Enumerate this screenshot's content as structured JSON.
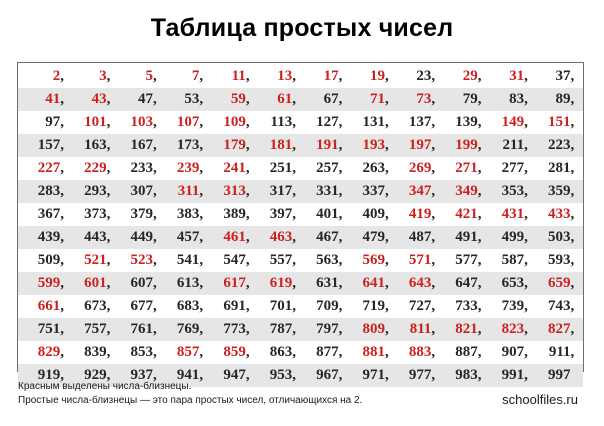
{
  "title": "Таблица простых чисел",
  "colors": {
    "twin": "#cc1f1f",
    "normal": "#262626",
    "row_alt_bg": "#e6e6e6",
    "border": "#6e6e6e"
  },
  "rows": [
    [
      {
        "n": "2",
        "twin": true
      },
      {
        "n": "3",
        "twin": true
      },
      {
        "n": "5",
        "twin": true
      },
      {
        "n": "7",
        "twin": true
      },
      {
        "n": "11",
        "twin": true
      },
      {
        "n": "13",
        "twin": true
      },
      {
        "n": "17",
        "twin": true
      },
      {
        "n": "19",
        "twin": true
      },
      {
        "n": "23",
        "twin": false
      },
      {
        "n": "29",
        "twin": true
      },
      {
        "n": "31",
        "twin": true
      },
      {
        "n": "37",
        "twin": false
      }
    ],
    [
      {
        "n": "41",
        "twin": true
      },
      {
        "n": "43",
        "twin": true
      },
      {
        "n": "47",
        "twin": false
      },
      {
        "n": "53",
        "twin": false
      },
      {
        "n": "59",
        "twin": true
      },
      {
        "n": "61",
        "twin": true
      },
      {
        "n": "67",
        "twin": false
      },
      {
        "n": "71",
        "twin": true
      },
      {
        "n": "73",
        "twin": true
      },
      {
        "n": "79",
        "twin": false
      },
      {
        "n": "83",
        "twin": false
      },
      {
        "n": "89",
        "twin": false
      }
    ],
    [
      {
        "n": "97",
        "twin": false
      },
      {
        "n": "101",
        "twin": true
      },
      {
        "n": "103",
        "twin": true
      },
      {
        "n": "107",
        "twin": true
      },
      {
        "n": "109",
        "twin": true
      },
      {
        "n": "113",
        "twin": false
      },
      {
        "n": "127",
        "twin": false
      },
      {
        "n": "131",
        "twin": false
      },
      {
        "n": "137",
        "twin": false
      },
      {
        "n": "139",
        "twin": false
      },
      {
        "n": "149",
        "twin": true
      },
      {
        "n": "151",
        "twin": true
      }
    ],
    [
      {
        "n": "157",
        "twin": false
      },
      {
        "n": "163",
        "twin": false
      },
      {
        "n": "167",
        "twin": false
      },
      {
        "n": "173",
        "twin": false
      },
      {
        "n": "179",
        "twin": true
      },
      {
        "n": "181",
        "twin": true
      },
      {
        "n": "191",
        "twin": true
      },
      {
        "n": "193",
        "twin": true
      },
      {
        "n": "197",
        "twin": true
      },
      {
        "n": "199",
        "twin": true
      },
      {
        "n": "211",
        "twin": false
      },
      {
        "n": "223",
        "twin": false
      }
    ],
    [
      {
        "n": "227",
        "twin": true
      },
      {
        "n": "229",
        "twin": true
      },
      {
        "n": "233",
        "twin": false
      },
      {
        "n": "239",
        "twin": true
      },
      {
        "n": "241",
        "twin": true
      },
      {
        "n": "251",
        "twin": false
      },
      {
        "n": "257",
        "twin": false
      },
      {
        "n": "263",
        "twin": false
      },
      {
        "n": "269",
        "twin": true
      },
      {
        "n": "271",
        "twin": true
      },
      {
        "n": "277",
        "twin": false
      },
      {
        "n": "281",
        "twin": false
      }
    ],
    [
      {
        "n": "283",
        "twin": false
      },
      {
        "n": "293",
        "twin": false
      },
      {
        "n": "307",
        "twin": false
      },
      {
        "n": "311",
        "twin": true
      },
      {
        "n": "313",
        "twin": true
      },
      {
        "n": "317",
        "twin": false
      },
      {
        "n": "331",
        "twin": false
      },
      {
        "n": "337",
        "twin": false
      },
      {
        "n": "347",
        "twin": true
      },
      {
        "n": "349",
        "twin": true
      },
      {
        "n": "353",
        "twin": false
      },
      {
        "n": "359",
        "twin": false
      }
    ],
    [
      {
        "n": "367",
        "twin": false
      },
      {
        "n": "373",
        "twin": false
      },
      {
        "n": "379",
        "twin": false
      },
      {
        "n": "383",
        "twin": false
      },
      {
        "n": "389",
        "twin": false
      },
      {
        "n": "397",
        "twin": false
      },
      {
        "n": "401",
        "twin": false
      },
      {
        "n": "409",
        "twin": false
      },
      {
        "n": "419",
        "twin": true
      },
      {
        "n": "421",
        "twin": true
      },
      {
        "n": "431",
        "twin": true
      },
      {
        "n": "433",
        "twin": true
      }
    ],
    [
      {
        "n": "439",
        "twin": false
      },
      {
        "n": "443",
        "twin": false
      },
      {
        "n": "449",
        "twin": false
      },
      {
        "n": "457",
        "twin": false
      },
      {
        "n": "461",
        "twin": true
      },
      {
        "n": "463",
        "twin": true
      },
      {
        "n": "467",
        "twin": false
      },
      {
        "n": "479",
        "twin": false
      },
      {
        "n": "487",
        "twin": false
      },
      {
        "n": "491",
        "twin": false
      },
      {
        "n": "499",
        "twin": false
      },
      {
        "n": "503",
        "twin": false
      }
    ],
    [
      {
        "n": "509",
        "twin": false
      },
      {
        "n": "521",
        "twin": true
      },
      {
        "n": "523",
        "twin": true
      },
      {
        "n": "541",
        "twin": false
      },
      {
        "n": "547",
        "twin": false
      },
      {
        "n": "557",
        "twin": false
      },
      {
        "n": "563",
        "twin": false
      },
      {
        "n": "569",
        "twin": true
      },
      {
        "n": "571",
        "twin": true
      },
      {
        "n": "577",
        "twin": false
      },
      {
        "n": "587",
        "twin": false
      },
      {
        "n": "593",
        "twin": false
      }
    ],
    [
      {
        "n": "599",
        "twin": true
      },
      {
        "n": "601",
        "twin": true
      },
      {
        "n": "607",
        "twin": false
      },
      {
        "n": "613",
        "twin": false
      },
      {
        "n": "617",
        "twin": true
      },
      {
        "n": "619",
        "twin": true
      },
      {
        "n": "631",
        "twin": false
      },
      {
        "n": "641",
        "twin": true
      },
      {
        "n": "643",
        "twin": true
      },
      {
        "n": "647",
        "twin": false
      },
      {
        "n": "653",
        "twin": false
      },
      {
        "n": "659",
        "twin": true
      }
    ],
    [
      {
        "n": "661",
        "twin": true
      },
      {
        "n": "673",
        "twin": false
      },
      {
        "n": "677",
        "twin": false
      },
      {
        "n": "683",
        "twin": false
      },
      {
        "n": "691",
        "twin": false
      },
      {
        "n": "701",
        "twin": false
      },
      {
        "n": "709",
        "twin": false
      },
      {
        "n": "719",
        "twin": false
      },
      {
        "n": "727",
        "twin": false
      },
      {
        "n": "733",
        "twin": false
      },
      {
        "n": "739",
        "twin": false
      },
      {
        "n": "743",
        "twin": false
      }
    ],
    [
      {
        "n": "751",
        "twin": false
      },
      {
        "n": "757",
        "twin": false
      },
      {
        "n": "761",
        "twin": false
      },
      {
        "n": "769",
        "twin": false
      },
      {
        "n": "773",
        "twin": false
      },
      {
        "n": "787",
        "twin": false
      },
      {
        "n": "797",
        "twin": false
      },
      {
        "n": "809",
        "twin": true
      },
      {
        "n": "811",
        "twin": true
      },
      {
        "n": "821",
        "twin": true
      },
      {
        "n": "823",
        "twin": true
      },
      {
        "n": "827",
        "twin": true
      }
    ],
    [
      {
        "n": "829",
        "twin": true
      },
      {
        "n": "839",
        "twin": false
      },
      {
        "n": "853",
        "twin": false
      },
      {
        "n": "857",
        "twin": true
      },
      {
        "n": "859",
        "twin": true
      },
      {
        "n": "863",
        "twin": false
      },
      {
        "n": "877",
        "twin": false
      },
      {
        "n": "881",
        "twin": true
      },
      {
        "n": "883",
        "twin": true
      },
      {
        "n": "887",
        "twin": false
      },
      {
        "n": "907",
        "twin": false
      },
      {
        "n": "911",
        "twin": false
      }
    ],
    [
      {
        "n": "919",
        "twin": false
      },
      {
        "n": "929",
        "twin": false
      },
      {
        "n": "937",
        "twin": false
      },
      {
        "n": "941",
        "twin": false
      },
      {
        "n": "947",
        "twin": false
      },
      {
        "n": "953",
        "twin": false
      },
      {
        "n": "967",
        "twin": false
      },
      {
        "n": "971",
        "twin": false
      },
      {
        "n": "977",
        "twin": false
      },
      {
        "n": "983",
        "twin": false
      },
      {
        "n": "991",
        "twin": false
      },
      {
        "n": "997",
        "twin": false,
        "last": true
      }
    ]
  ],
  "footer": {
    "note_line1": "Красным выделены числа-близнецы.",
    "note_line2": "Простые числа-близнецы — это пара простых чисел, отличающихся на 2.",
    "site": "schoolfiles.ru"
  }
}
